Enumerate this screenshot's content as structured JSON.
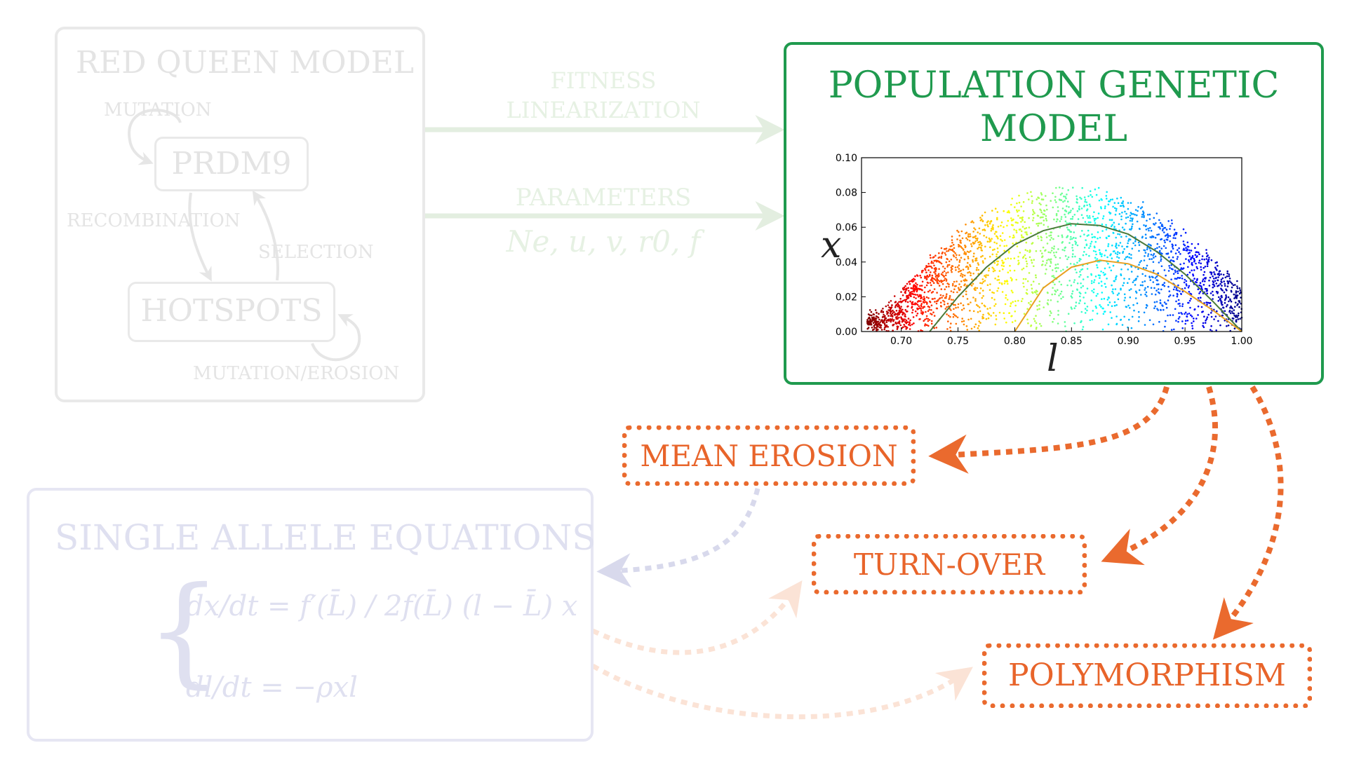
{
  "red_queen": {
    "title": "RED QUEEN MODEL",
    "prdm9": "PRDM9",
    "hotspots": "HOTSPOTS",
    "mutation": "MUTATION",
    "recombination": "RECOMBINATION",
    "selection": "SELECTION",
    "mutation_erosion": "MUTATION/EROSION"
  },
  "links": {
    "fitness_line1": "FITNESS",
    "fitness_line2": "LINEARIZATION",
    "parameters": "PARAMETERS",
    "parameter_list": "Ne, u, v, r0, f"
  },
  "pgm": {
    "title_line1": "POPULATION GENETIC",
    "title_line2": "MODEL"
  },
  "outcomes": {
    "mean_erosion": "MEAN EROSION",
    "turn_over": "TURN-OVER",
    "polymorphism": "POLYMORPHISM"
  },
  "single_allele": {
    "title": "SINGLE ALLELE EQUATIONS",
    "eq1": "dx/dt = f′(L̄) / 2f(L̄) (l − L̄) x",
    "eq2": "dl/dt = −ρxl"
  },
  "chart_data": {
    "type": "scatter",
    "xlabel": "l",
    "ylabel": "x",
    "xlim": [
      0.665,
      1.0
    ],
    "ylim": [
      0.0,
      0.1
    ],
    "xticks": [
      "0.70",
      "0.75",
      "0.80",
      "0.85",
      "0.90",
      "0.95",
      "1.00"
    ],
    "yticks": [
      "0.00",
      "0.02",
      "0.04",
      "0.06",
      "0.08",
      "0.10"
    ],
    "colormap": "jet",
    "curves": [
      {
        "color": "#4a7a3a",
        "x": [
          0.725,
          0.75,
          0.775,
          0.8,
          0.825,
          0.85,
          0.875,
          0.9,
          0.925,
          0.95,
          0.975,
          1.0
        ],
        "y": [
          0.0,
          0.02,
          0.037,
          0.05,
          0.058,
          0.062,
          0.061,
          0.056,
          0.046,
          0.033,
          0.017,
          0.0
        ]
      },
      {
        "color": "#e8a020",
        "x": [
          0.8,
          0.825,
          0.85,
          0.875,
          0.9,
          0.925,
          0.95,
          0.975,
          1.0
        ],
        "y": [
          0.0,
          0.025,
          0.037,
          0.041,
          0.039,
          0.033,
          0.023,
          0.012,
          0.0
        ]
      }
    ]
  }
}
